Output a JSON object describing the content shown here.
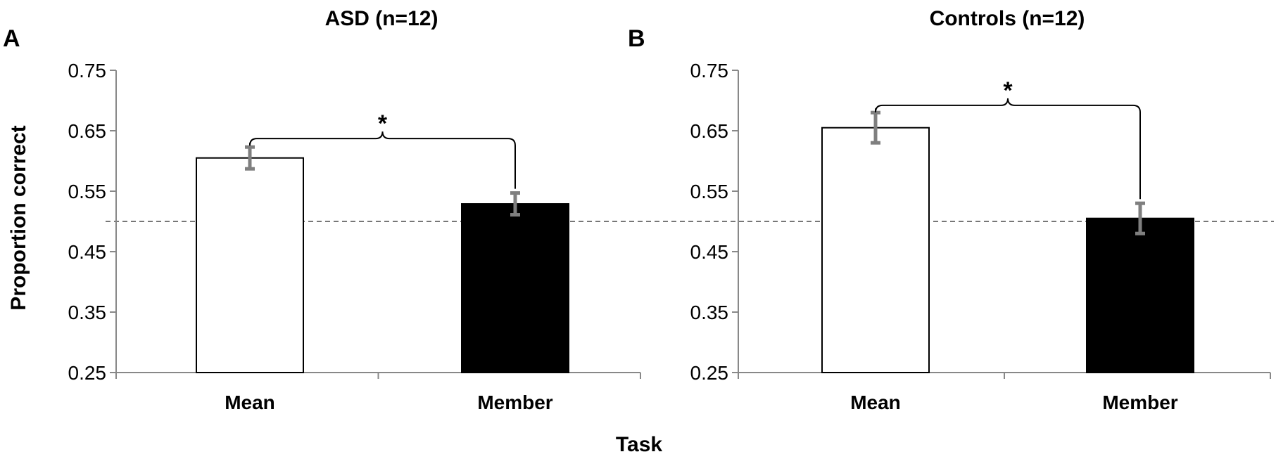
{
  "figure": {
    "ylabel": "Proportion correct",
    "xlabel": "Task"
  },
  "chart_data": [
    {
      "type": "bar",
      "panel_letter": "A",
      "title": "ASD (n=12)",
      "categories": [
        "Mean",
        "Member"
      ],
      "values": [
        0.605,
        0.529
      ],
      "errors": [
        0.018,
        0.018
      ],
      "bar_colors": [
        "#ffffff",
        "#000000"
      ],
      "ylim": [
        0.25,
        0.75
      ],
      "yticks": [
        "0.75",
        "0.65",
        "0.55",
        "0.45",
        "0.35",
        "0.25"
      ],
      "chance_line": 0.5,
      "significance": {
        "pair": [
          0,
          1
        ],
        "label": "*",
        "y": 0.637
      },
      "grid": false,
      "legend": "none"
    },
    {
      "type": "bar",
      "panel_letter": "B",
      "title": "Controls (n=12)",
      "categories": [
        "Mean",
        "Member"
      ],
      "values": [
        0.655,
        0.505
      ],
      "errors": [
        0.025,
        0.025
      ],
      "bar_colors": [
        "#ffffff",
        "#000000"
      ],
      "ylim": [
        0.25,
        0.75
      ],
      "yticks": [
        "0.75",
        "0.65",
        "0.55",
        "0.45",
        "0.35",
        "0.25"
      ],
      "chance_line": 0.5,
      "significance": {
        "pair": [
          0,
          1
        ],
        "label": "*",
        "y": 0.692
      },
      "grid": false,
      "legend": "none"
    }
  ]
}
